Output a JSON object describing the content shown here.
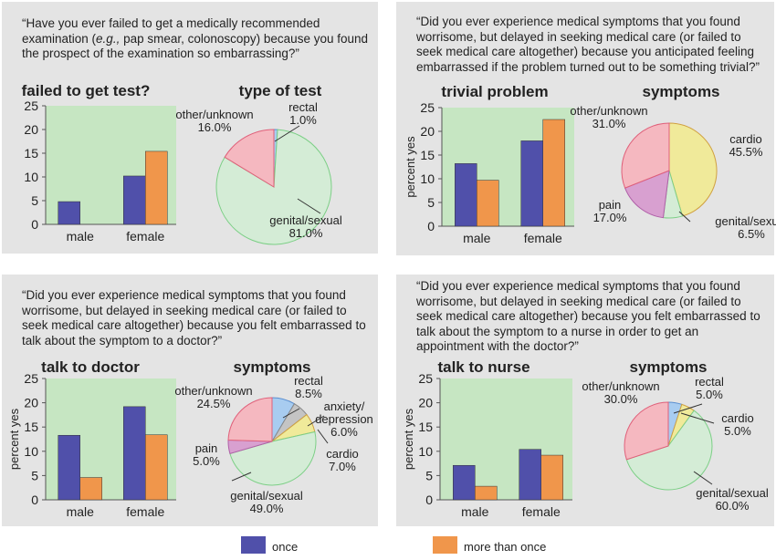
{
  "colors": {
    "once": "#5050aa",
    "more_than_once": "#f0964b",
    "plot_bg": "#c6e6c2",
    "panel_bg": "#e4e4e4",
    "rectal": "#a8ccf0",
    "genital_sexual": "#d4ecd6",
    "other_unknown": "#f5b8c0",
    "cardio": "#f0ea9a",
    "pain": "#d8a0d0",
    "anxiety_depression": "#c4c4c4"
  },
  "legend": {
    "once_label": "once",
    "more_than_once_label": "more than once"
  },
  "panels": [
    {
      "question": [
        "“Have you ever failed to get a medically recommended",
        "examination (e.g., pap smear, colonoscopy) because you found",
        "the prospect of the examination so embarrassing?”"
      ],
      "bar_title": "failed to get test?",
      "pie_title": "type of test",
      "ylabel": "",
      "pie_labels": [
        {
          "text": [
            "rectal",
            "1.0%"
          ]
        },
        {
          "text": [
            "genital/sexual",
            "81.0%"
          ]
        },
        {
          "text": [
            "other/unknown",
            "16.0%"
          ]
        }
      ]
    },
    {
      "question": [
        "“Did you ever experience medical symptoms that you found",
        "worrisome, but delayed in seeking medical care (or failed to",
        "seek medical care altogether) because you anticipated feeling",
        "embarrassed if the problem turned out to be something trivial?”"
      ],
      "bar_title": "trivial problem",
      "pie_title": "symptoms",
      "ylabel": "percent yes",
      "pie_labels": [
        {
          "text": [
            "cardio",
            "45.5%"
          ]
        },
        {
          "text": [
            "genital/sexual",
            "6.5%"
          ]
        },
        {
          "text": [
            "pain",
            "17.0%"
          ]
        },
        {
          "text": [
            "other/unknown",
            "31.0%"
          ]
        }
      ]
    },
    {
      "question": [
        "“Did you ever experience medical symptoms that you found",
        "worrisome, but delayed in seeking medical care (or failed to",
        "seek medical care altogether) because you felt embarrassed to",
        "talk about the symptom to a doctor?”"
      ],
      "bar_title": "talk to doctor",
      "pie_title": "symptoms",
      "ylabel": "percent yes",
      "pie_labels": [
        {
          "text": [
            "rectal",
            "8.5%"
          ]
        },
        {
          "text": [
            "anxiety/",
            "depression",
            "6.0%"
          ]
        },
        {
          "text": [
            "cardio",
            "7.0%"
          ]
        },
        {
          "text": [
            "genital/sexual",
            "49.0%"
          ]
        },
        {
          "text": [
            "pain",
            "5.0%"
          ]
        },
        {
          "text": [
            "other/unknown",
            "24.5%"
          ]
        }
      ]
    },
    {
      "question": [
        "“Did you ever experience medical symptoms that you found",
        "worrisome, but delayed in seeking medical care (or failed to",
        "seek medical care altogether) because you felt embarrassed to",
        "talk about the symptom to a nurse in order to get an",
        "appointment with the doctor?”"
      ],
      "bar_title": "talk to nurse",
      "pie_title": "symptoms",
      "ylabel": "percent yes",
      "pie_labels": [
        {
          "text": [
            "rectal",
            "5.0%"
          ]
        },
        {
          "text": [
            "cardio",
            "5.0%"
          ]
        },
        {
          "text": [
            "genital/sexual",
            "60.0%"
          ]
        },
        {
          "text": [
            "other/unknown",
            "30.0%"
          ]
        }
      ]
    }
  ],
  "chart_data": [
    {
      "type": "bar",
      "title": "failed to get test?",
      "ylabel": "",
      "categories": [
        "male",
        "female"
      ],
      "series": [
        {
          "name": "once",
          "values": [
            4.8,
            10.2
          ]
        },
        {
          "name": "more than once",
          "values": [
            0,
            15.4
          ]
        }
      ],
      "ylim": [
        0,
        25
      ],
      "yticks": [
        0,
        5,
        10,
        15,
        20,
        25
      ],
      "grid": false
    },
    {
      "type": "pie",
      "title": "type of test",
      "labels": [
        "rectal",
        "genital/sexual",
        "other/unknown"
      ],
      "values": [
        1.0,
        81.0,
        16.0
      ],
      "colors": [
        "#a8ccf0",
        "#d4ecd6",
        "#f5b8c0"
      ]
    },
    {
      "type": "bar",
      "title": "trivial problem",
      "ylabel": "percent yes",
      "categories": [
        "male",
        "female"
      ],
      "series": [
        {
          "name": "once",
          "values": [
            13.2,
            18.0
          ]
        },
        {
          "name": "more than once",
          "values": [
            9.7,
            22.5
          ]
        }
      ],
      "ylim": [
        0,
        25
      ],
      "yticks": [
        0,
        5,
        10,
        15,
        20,
        25
      ],
      "grid": false
    },
    {
      "type": "pie",
      "title": "symptoms",
      "labels": [
        "cardio",
        "genital/sexual",
        "pain",
        "other/unknown"
      ],
      "values": [
        45.5,
        6.5,
        17.0,
        31.0
      ],
      "colors": [
        "#f0ea9a",
        "#d4ecd6",
        "#d8a0d0",
        "#f5b8c0"
      ]
    },
    {
      "type": "bar",
      "title": "talk to doctor",
      "ylabel": "percent yes",
      "categories": [
        "male",
        "female"
      ],
      "series": [
        {
          "name": "once",
          "values": [
            13.3,
            19.2
          ]
        },
        {
          "name": "more than once",
          "values": [
            4.6,
            13.4
          ]
        }
      ],
      "ylim": [
        0,
        25
      ],
      "yticks": [
        0,
        5,
        10,
        15,
        20,
        25
      ],
      "grid": false
    },
    {
      "type": "pie",
      "title": "symptoms",
      "labels": [
        "rectal",
        "anxiety/depression",
        "cardio",
        "genital/sexual",
        "pain",
        "other/unknown"
      ],
      "values": [
        8.5,
        6.0,
        7.0,
        49.0,
        5.0,
        24.5
      ],
      "colors": [
        "#a8ccf0",
        "#c4c4c4",
        "#f0ea9a",
        "#d4ecd6",
        "#d8a0d0",
        "#f5b8c0"
      ]
    },
    {
      "type": "bar",
      "title": "talk to nurse",
      "ylabel": "percent yes",
      "categories": [
        "male",
        "female"
      ],
      "series": [
        {
          "name": "once",
          "values": [
            7.1,
            10.4
          ]
        },
        {
          "name": "more than once",
          "values": [
            2.8,
            9.2
          ]
        }
      ],
      "ylim": [
        0,
        25
      ],
      "yticks": [
        0,
        5,
        10,
        15,
        20,
        25
      ],
      "grid": false
    },
    {
      "type": "pie",
      "title": "symptoms",
      "labels": [
        "rectal",
        "cardio",
        "genital/sexual",
        "other/unknown"
      ],
      "values": [
        5.0,
        5.0,
        60.0,
        30.0
      ],
      "colors": [
        "#a8ccf0",
        "#f0ea9a",
        "#d4ecd6",
        "#f5b8c0"
      ]
    }
  ]
}
